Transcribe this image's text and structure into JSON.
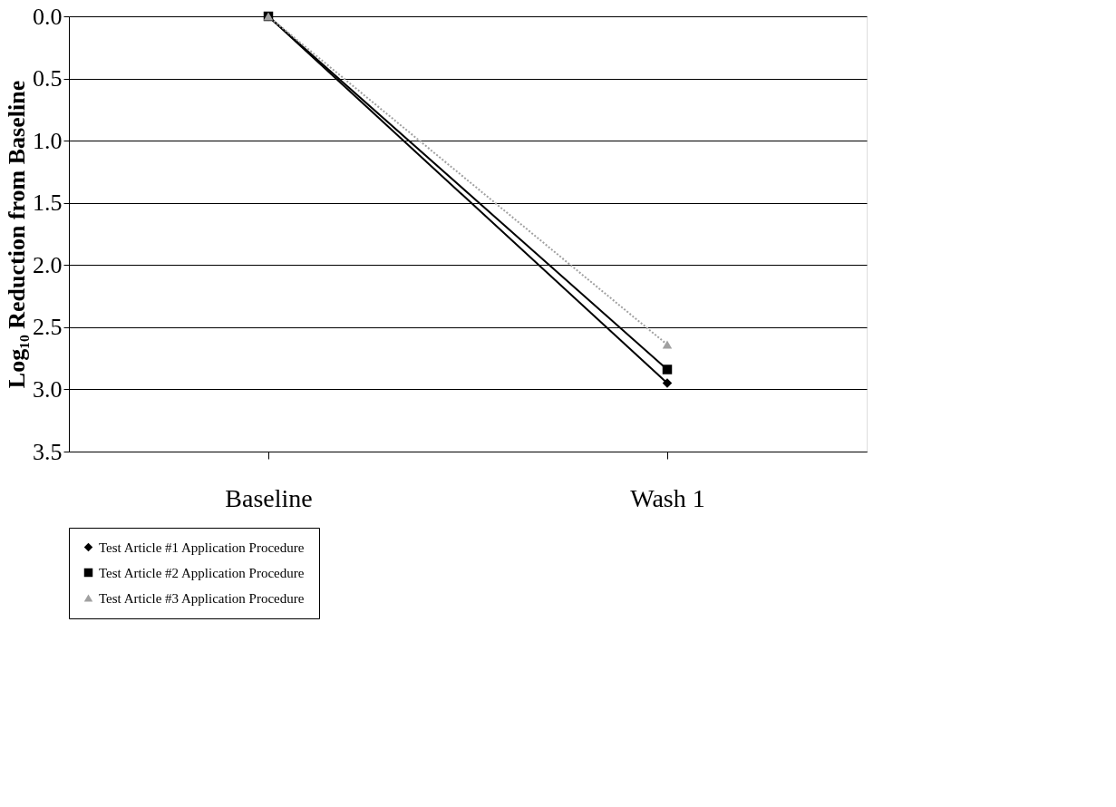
{
  "chart_data": {
    "type": "line",
    "ylabel": "Log₁₀ Reduction from Baseline",
    "categories": [
      "Baseline",
      "Wash 1"
    ],
    "ylim": [
      3.5,
      0
    ],
    "yticks": [
      {
        "value": 0,
        "label": "0.0"
      },
      {
        "value": 0.5,
        "label": "0.5"
      },
      {
        "value": 1,
        "label": "1.0"
      },
      {
        "value": 1.5,
        "label": "1.5"
      },
      {
        "value": 2,
        "label": "2.0"
      },
      {
        "value": 2.5,
        "label": "2.5"
      },
      {
        "value": 3,
        "label": "3.0"
      },
      {
        "value": 3.5,
        "label": "3.5"
      }
    ],
    "grid": "y",
    "legend": "bottom",
    "series": [
      {
        "name": "Test Article #1 Application Procedure",
        "color": "#000000",
        "values": [
          0,
          2.95
        ],
        "marker": "diamond",
        "line_style": "solid"
      },
      {
        "name": "Test Article #2 Application Procedure",
        "color": "#000000",
        "values": [
          0,
          2.84
        ],
        "marker": "square",
        "line_style": "solid"
      },
      {
        "name": "Test Article #3 Application Procedure",
        "color": "#a0a0a0",
        "values": [
          0,
          2.64
        ],
        "marker": "triangle",
        "line_style": "dotted"
      }
    ]
  }
}
